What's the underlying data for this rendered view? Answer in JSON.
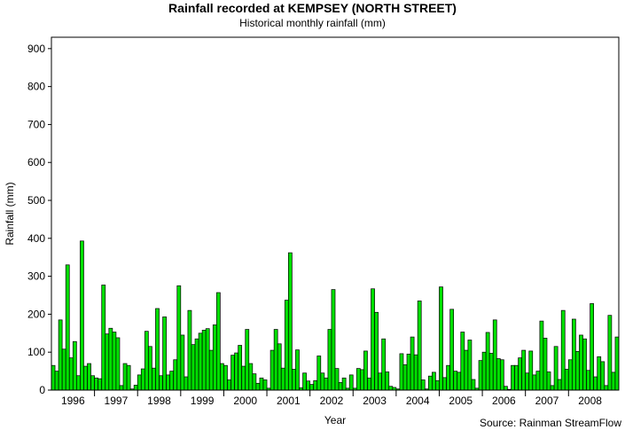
{
  "chart_data": {
    "type": "bar",
    "title": "Rainfall recorded at KEMPSEY (NORTH STREET)",
    "subtitle": "Historical monthly rainfall (mm)",
    "xlabel": "Year",
    "ylabel": "Rainfall (mm)",
    "ylim": [
      0,
      930
    ],
    "yticks": [
      0,
      100,
      200,
      300,
      400,
      500,
      600,
      700,
      800,
      900
    ],
    "start_month": "1996-01",
    "year_labels": [
      "1996",
      "1997",
      "1998",
      "1999",
      "2000",
      "2001",
      "2002",
      "2003",
      "2004",
      "2005",
      "2006",
      "2007",
      "2008"
    ],
    "bar_color": "#00e000",
    "grid": false,
    "values": [
      65,
      50,
      185,
      108,
      330,
      85,
      128,
      38,
      393,
      63,
      70,
      38,
      32,
      30,
      277,
      148,
      163,
      153,
      138,
      12,
      70,
      65,
      3,
      13,
      40,
      56,
      155,
      115,
      58,
      215,
      38,
      193,
      40,
      50,
      80,
      275,
      145,
      35,
      210,
      120,
      135,
      150,
      158,
      162,
      105,
      172,
      257,
      70,
      65,
      27,
      92,
      98,
      118,
      63,
      160,
      70,
      43,
      18,
      32,
      27,
      5,
      105,
      160,
      122,
      58,
      237,
      362,
      55,
      106,
      6,
      45,
      24,
      15,
      25,
      90,
      45,
      32,
      160,
      265,
      57,
      20,
      32,
      5,
      40,
      5,
      57,
      54,
      103,
      32,
      267,
      205,
      45,
      135,
      48,
      10,
      7,
      3,
      96,
      67,
      95,
      140,
      93,
      235,
      27,
      3,
      37,
      47,
      25,
      272,
      33,
      65,
      213,
      50,
      47,
      153,
      105,
      132,
      28,
      5,
      78,
      100,
      152,
      97,
      185,
      83,
      80,
      10,
      2,
      65,
      65,
      85,
      105,
      45,
      103,
      40,
      50,
      182,
      137,
      48,
      12,
      115,
      28,
      210,
      55,
      80,
      187,
      102,
      145,
      135,
      52,
      228,
      35,
      88,
      75,
      12,
      197,
      47,
      140
    ]
  },
  "source_note": "Source: Rainman StreamFlow"
}
